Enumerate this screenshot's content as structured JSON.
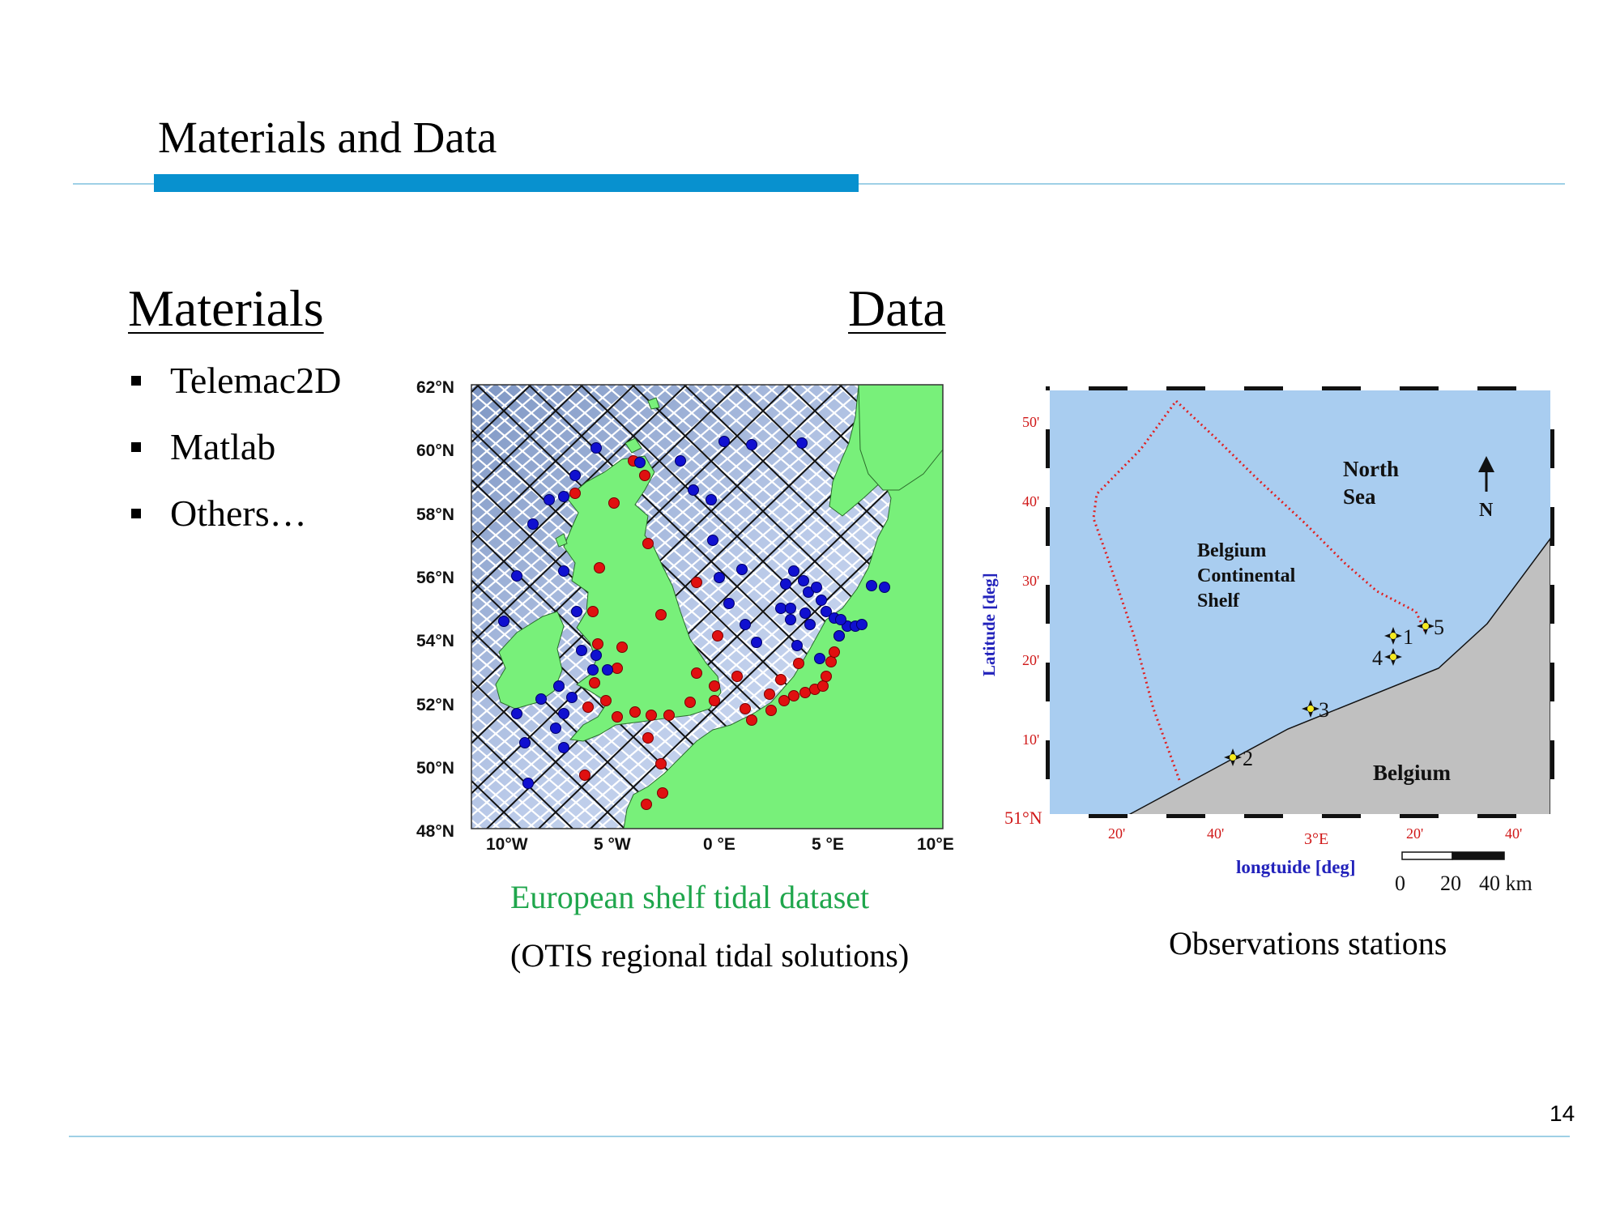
{
  "header": {
    "title": "Materials and Data"
  },
  "colors": {
    "accent_bar": "#0891cf",
    "divider": "#9fd0e6",
    "caption_green": "#1fa64c",
    "sea_light": "#a9cdf0",
    "land_green": "#78f07a",
    "land_grey": "#c0c0c0",
    "station_red": "#e01010",
    "station_blue": "#1010d0"
  },
  "materials": {
    "heading": "Materials",
    "items": [
      "Telemac2D",
      "Matlab",
      "Others…"
    ]
  },
  "data": {
    "heading": "Data"
  },
  "tidal_map": {
    "lat_labels": [
      "62°N",
      "60°N",
      "58°N",
      "56°N",
      "54°N",
      "52°N",
      "50°N",
      "48°N"
    ],
    "lon_labels": [
      "10°W",
      "5 °W",
      "0 °E",
      "5 °E",
      "10°E"
    ],
    "caption_1": "European shelf tidal dataset",
    "caption_2": "(OTIS regional tidal solutions)"
  },
  "obs_map": {
    "ylabel": "Latitude [deg]",
    "xlabel": "longtuide [deg]",
    "lat_ticks": [
      "50'",
      "40'",
      "30'",
      "20'",
      "10'",
      "51°N"
    ],
    "lon_ticks": [
      "20'",
      "40'",
      "3°E",
      "20'",
      "40'"
    ],
    "labels": {
      "north_sea_1": "North",
      "north_sea_2": "Sea",
      "shelf_1": "Belgium",
      "shelf_2": "Continental",
      "shelf_3": "Shelf",
      "belgium": "Belgium",
      "north_arrow": "N"
    },
    "stations": [
      "1",
      "2",
      "3",
      "4",
      "5"
    ],
    "scale": {
      "zero": "0",
      "mid": "20",
      "end": "40 km"
    },
    "caption": "Observations stations"
  },
  "footer": {
    "page_number": "14"
  }
}
